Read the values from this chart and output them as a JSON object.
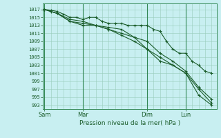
{
  "xlabel": "Pression niveau de la mer( hPa )",
  "background_color": "#c8eff1",
  "grid_color": "#99ccbb",
  "line_color": "#1a5c2a",
  "dark_vline_color": "#338855",
  "ylim": [
    992,
    1018.5
  ],
  "yticks": [
    993,
    995,
    997,
    999,
    1001,
    1003,
    1005,
    1007,
    1009,
    1011,
    1013,
    1015,
    1017
  ],
  "x_tick_labels": [
    "Sam",
    "Mar",
    "Dim",
    "Lun"
  ],
  "x_tick_positions": [
    0,
    3,
    8,
    11
  ],
  "x_vlines": [
    0,
    3,
    8,
    11
  ],
  "xlim": [
    -0.1,
    13.4
  ],
  "line1_x": [
    0,
    0.5,
    1.0,
    1.5,
    2.0,
    2.5,
    3.0,
    3.5,
    4.0,
    4.5,
    5.0,
    5.5,
    6.0,
    6.5,
    7.0,
    7.5,
    8.0,
    8.5,
    9.0,
    9.5,
    10.0,
    10.5,
    11.0,
    11.5,
    12.0,
    12.5,
    13.0
  ],
  "line1_y": [
    1017,
    1016.8,
    1016.5,
    1015.8,
    1015,
    1015,
    1014.5,
    1015,
    1015,
    1014,
    1013.5,
    1013.5,
    1013.5,
    1013,
    1013,
    1013,
    1013,
    1012,
    1011.5,
    1009,
    1007,
    1006,
    1006,
    1004,
    1003,
    1001.5,
    1001
  ],
  "line2_x": [
    0,
    0.5,
    1.0,
    2.0,
    3.0,
    4.0,
    5.0,
    6.0,
    7.0,
    8.0,
    9.0,
    10.0,
    11.0,
    12.0,
    13.0
  ],
  "line2_y": [
    1017,
    1016.5,
    1016,
    1014.5,
    1014,
    1013,
    1012.5,
    1012,
    1010,
    1009,
    1006,
    1004,
    1001.5,
    997.5,
    994.5
  ],
  "line3_x": [
    0,
    1.0,
    2.0,
    3.0,
    4.0,
    5.0,
    6.0,
    7.0,
    8.0,
    9.0,
    10.0,
    11.0,
    12.0,
    13.0
  ],
  "line3_y": [
    1017,
    1016,
    1014,
    1013.5,
    1013,
    1012,
    1010.5,
    1009,
    1007,
    1005,
    1003,
    1001,
    997,
    993.5
  ],
  "line4_x": [
    0,
    1.0,
    2.0,
    3.0,
    4.0,
    5.0,
    6.0,
    7.0,
    8.0,
    9.0,
    10.0,
    11.0,
    12.0,
    13.0
  ],
  "line4_y": [
    1017,
    1016,
    1014,
    1013,
    1013,
    1012,
    1011,
    1010,
    1007,
    1004,
    1003,
    1001,
    995.5,
    993
  ]
}
